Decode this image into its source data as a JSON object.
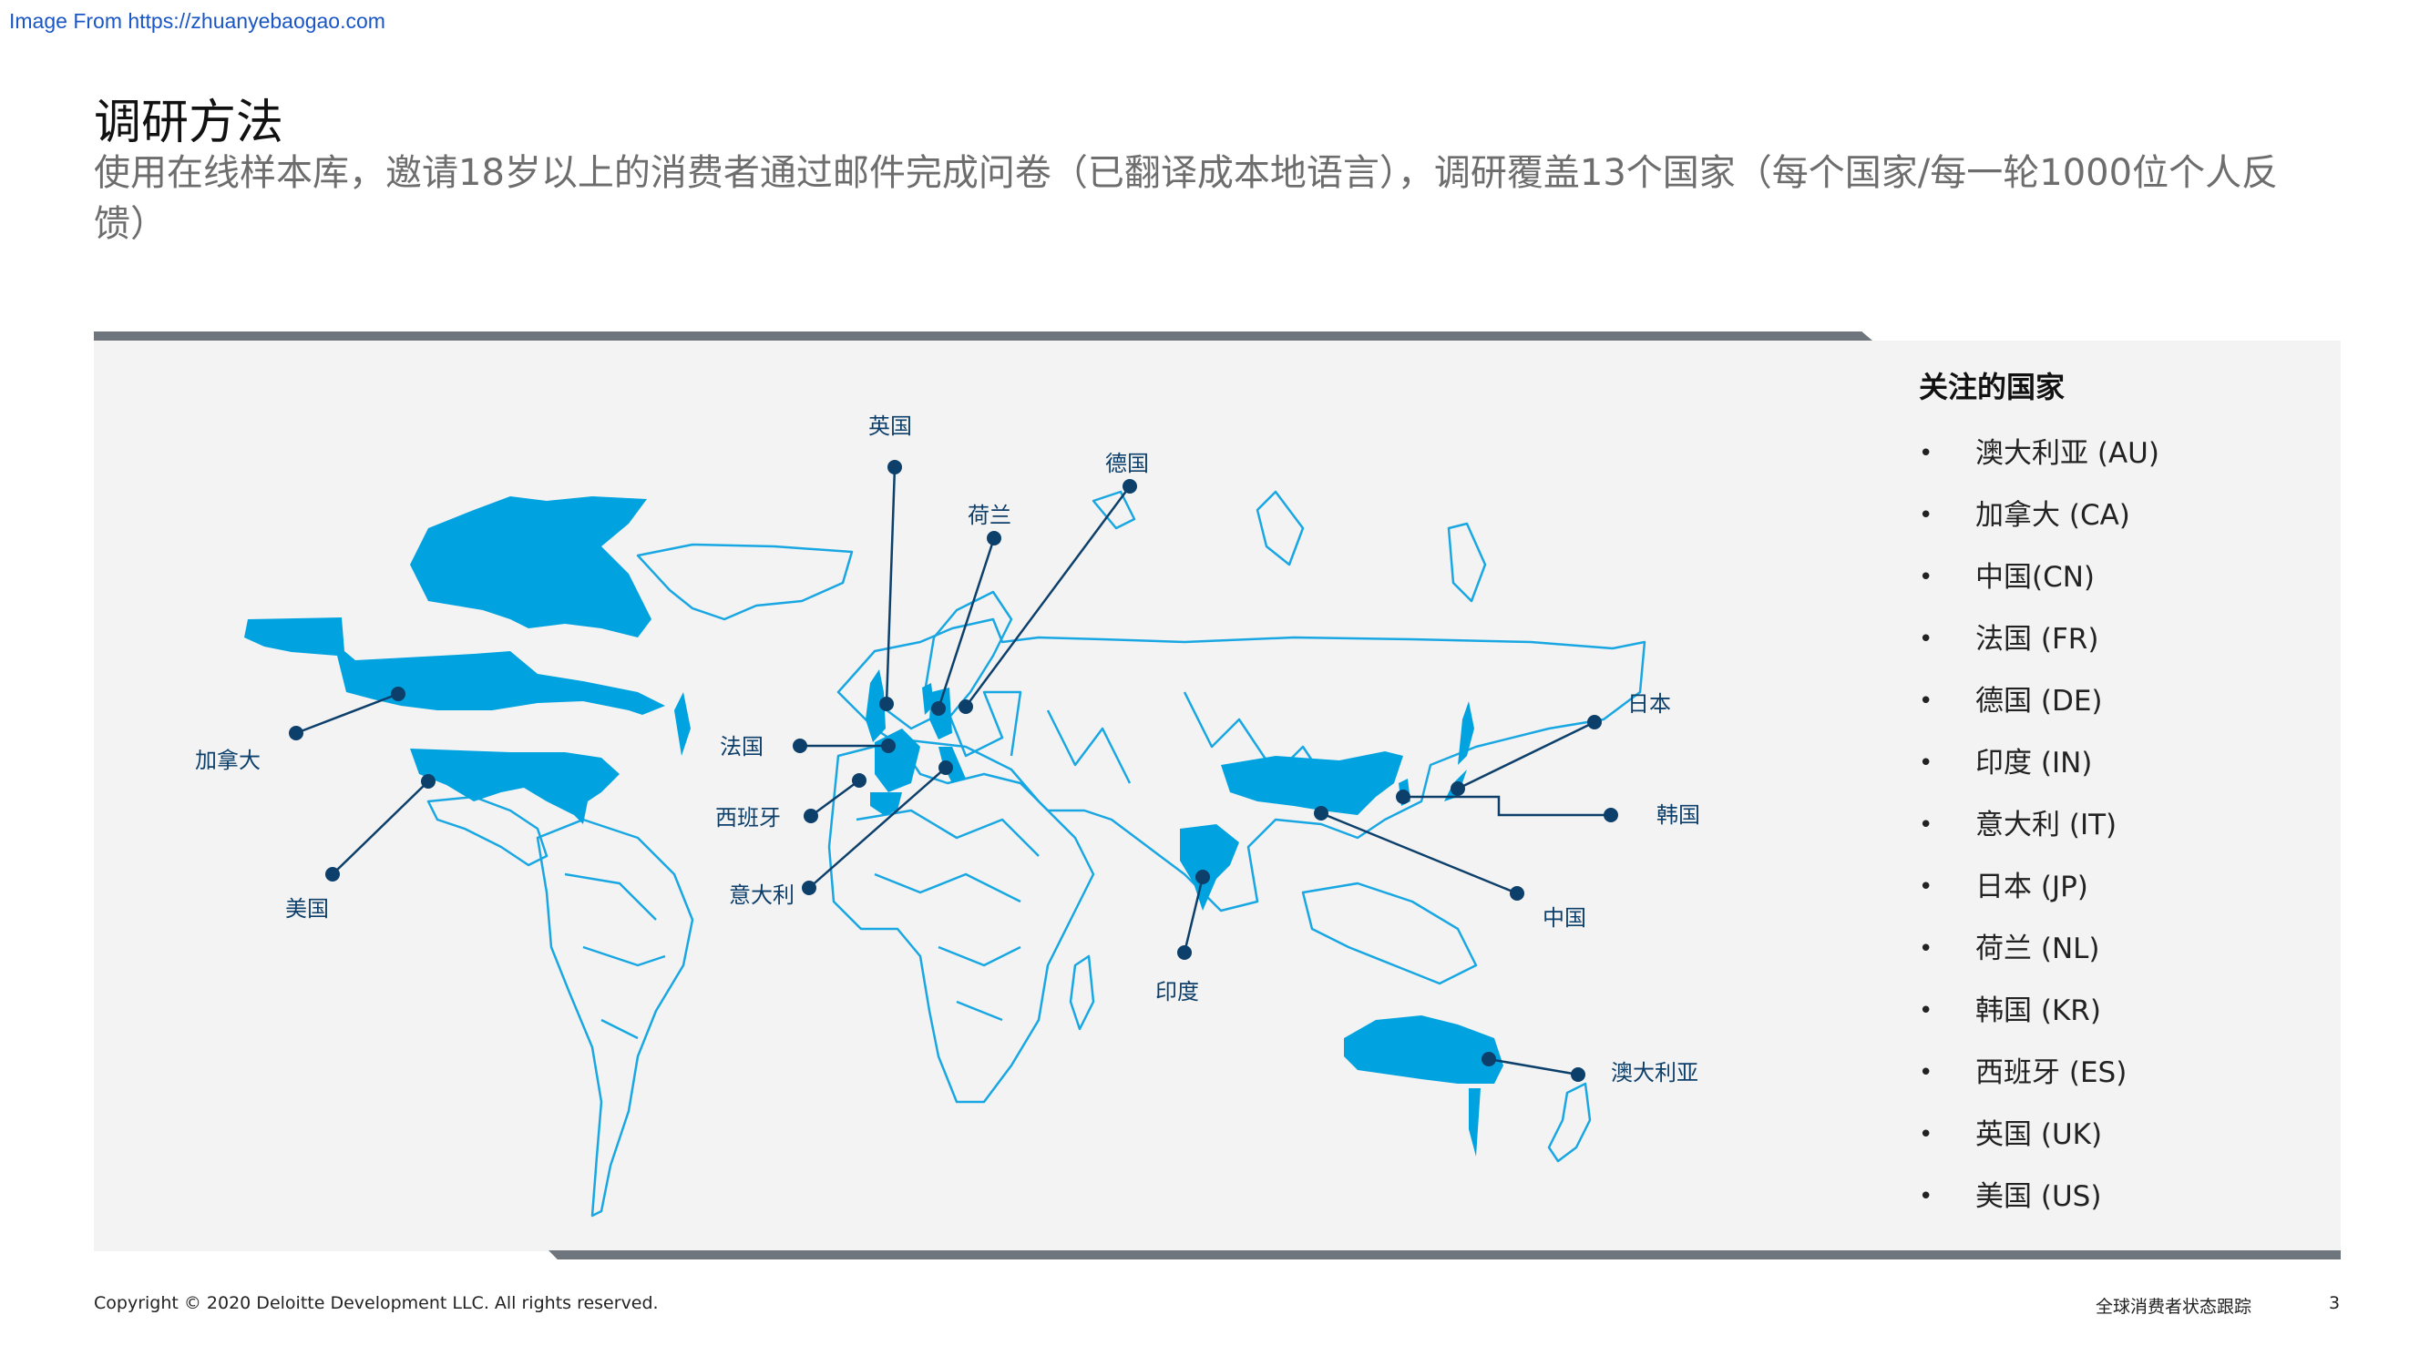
{
  "watermark": "Image From https://zhuanyebaogao.com",
  "title": "调研方法",
  "subtitle": "使用在线样本库，邀请18岁以上的消费者通过邮件完成问卷（已翻译成本地语言），调研覆盖13个国家（每个国家/每一轮1000位个人反馈）",
  "colors": {
    "highlight": "#00a3e0",
    "outline": "#18a7e2",
    "connector": "#0d3f6b",
    "bar": "#6e757c",
    "panel": "#f3f3f3"
  },
  "map": {
    "labels": {
      "uk": "英国",
      "de": "德国",
      "nl": "荷兰",
      "fr": "法国",
      "es": "西班牙",
      "it": "意大利",
      "ca": "加拿大",
      "us": "美国",
      "jp": "日本",
      "kr": "韩国",
      "cn": "中国",
      "in": "印度",
      "au": "澳大利亚"
    }
  },
  "focus": {
    "title": "关注的国家",
    "bullet": "•",
    "items": [
      "澳大利亚 (AU)",
      "加拿大 (CA)",
      "中国(CN)",
      "法国 (FR)",
      "德国 (DE)",
      "印度 (IN)",
      "意大利 (IT)",
      "日本 (JP)",
      "荷兰 (NL)",
      "韩国 (KR)",
      "西班牙 (ES)",
      "英国 (UK)",
      "美国 (US)"
    ]
  },
  "footer": {
    "copyright": "Copyright © 2020 Deloitte Development LLC. All rights reserved.",
    "report": "全球消费者状态跟踪",
    "page": "3"
  }
}
